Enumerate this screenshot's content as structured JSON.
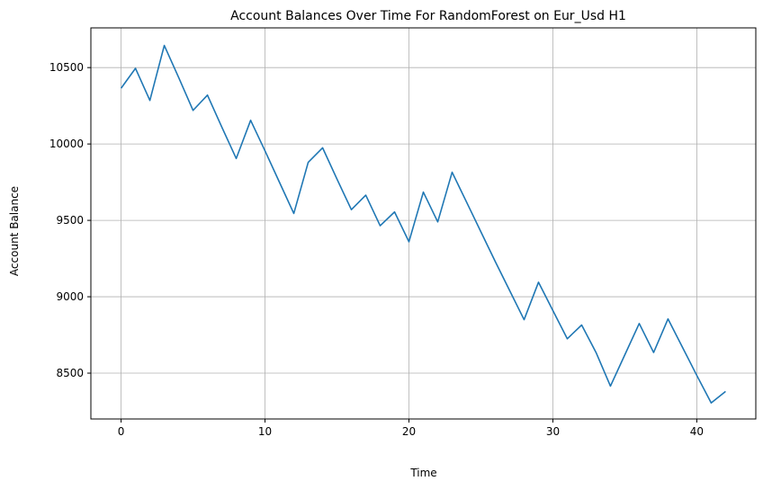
{
  "chart_data": {
    "type": "line",
    "title": "Account Balances Over Time For RandomForest on Eur_Usd H1",
    "xlabel": "Time",
    "ylabel": "Account Balance",
    "xlim": [
      -2.1,
      44.1
    ],
    "ylim": [
      8200,
      10760
    ],
    "xticks": [
      0,
      10,
      20,
      30,
      40
    ],
    "yticks": [
      8500,
      9000,
      9500,
      10000,
      10500
    ],
    "grid": true,
    "legend": false,
    "series": [
      {
        "color": "#1f77b4",
        "x": [
          0,
          1,
          2,
          3,
          4,
          5,
          6,
          7,
          8,
          9,
          10,
          11,
          12,
          13,
          14,
          15,
          16,
          17,
          18,
          19,
          20,
          21,
          22,
          23,
          24,
          25,
          26,
          27,
          28,
          29,
          30,
          31,
          32,
          33,
          34,
          35,
          36,
          37,
          38,
          39,
          40,
          41,
          42
        ],
        "y": [
          10365,
          10495,
          10285,
          10645,
          10435,
          10220,
          10320,
          10110,
          9905,
          10155,
          9955,
          9750,
          9545,
          9880,
          9975,
          9770,
          9570,
          9665,
          9465,
          9555,
          9360,
          9685,
          9490,
          9815,
          9620,
          9425,
          9230,
          9040,
          8850,
          9095,
          8910,
          8725,
          8815,
          8635,
          8415,
          8620,
          8825,
          8635,
          8855,
          8670,
          8485,
          8305,
          8380
        ]
      }
    ]
  }
}
